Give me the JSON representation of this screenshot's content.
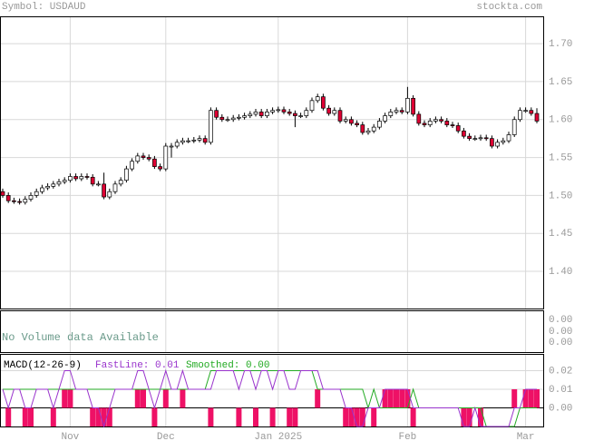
{
  "chart_data": {
    "type": "candlestick",
    "symbol_label": "Symbol: USDAUD",
    "site": "stockta.com",
    "categories": [
      null,
      null,
      null,
      null,
      null,
      null,
      null,
      null,
      null,
      null,
      null,
      null,
      "Nov",
      null,
      null,
      null,
      null,
      null,
      null,
      null,
      null,
      null,
      null,
      null,
      null,
      null,
      null,
      null,
      null,
      "Dec",
      null,
      null,
      null,
      null,
      null,
      null,
      null,
      null,
      null,
      null,
      null,
      null,
      null,
      null,
      null,
      null,
      null,
      null,
      null,
      "Jan 2025",
      null,
      null,
      null,
      null,
      null,
      null,
      null,
      null,
      null,
      null,
      null,
      null,
      null,
      null,
      null,
      null,
      null,
      null,
      null,
      null,
      null,
      null,
      "Feb",
      null,
      null,
      null,
      null,
      null,
      null,
      null,
      null,
      null,
      null,
      null,
      null,
      null,
      null,
      null,
      null,
      null,
      null,
      null,
      null,
      "Mar",
      null,
      null
    ],
    "open": [
      1.505,
      1.5,
      1.493,
      1.492,
      1.491,
      1.495,
      1.5,
      1.505,
      1.51,
      1.512,
      1.515,
      1.518,
      1.52,
      1.525,
      1.522,
      1.525,
      1.524,
      1.515,
      1.515,
      1.498,
      1.505,
      1.515,
      1.52,
      1.535,
      1.545,
      1.552,
      1.55,
      1.548,
      1.538,
      1.535,
      1.565,
      1.565,
      1.57,
      1.572,
      1.572,
      1.573,
      1.575,
      1.57,
      1.612,
      1.603,
      1.6,
      1.6,
      1.602,
      1.603,
      1.605,
      1.607,
      1.61,
      1.605,
      1.61,
      1.612,
      1.613,
      1.61,
      1.608,
      1.605,
      1.605,
      1.612,
      1.625,
      1.63,
      1.615,
      1.608,
      1.612,
      1.598,
      1.6,
      1.595,
      1.593,
      1.583,
      1.585,
      1.59,
      1.598,
      1.605,
      1.61,
      1.612,
      1.61,
      1.628,
      1.607,
      1.595,
      1.593,
      1.598,
      1.6,
      1.598,
      1.593,
      1.592,
      1.585,
      1.578,
      1.575,
      1.575,
      1.576,
      1.575,
      1.565,
      1.57,
      1.572,
      1.58,
      1.6,
      1.612,
      1.612,
      1.608
    ],
    "high": [
      1.509,
      1.504,
      1.497,
      1.496,
      1.499,
      1.504,
      1.509,
      1.514,
      1.516,
      1.519,
      1.522,
      1.524,
      1.529,
      1.529,
      1.529,
      1.529,
      1.528,
      1.519,
      1.53,
      1.509,
      1.519,
      1.524,
      1.539,
      1.549,
      1.556,
      1.556,
      1.554,
      1.552,
      1.542,
      1.569,
      1.569,
      1.574,
      1.576,
      1.576,
      1.577,
      1.579,
      1.579,
      1.616,
      1.616,
      1.607,
      1.604,
      1.606,
      1.607,
      1.609,
      1.611,
      1.614,
      1.614,
      1.614,
      1.616,
      1.617,
      1.617,
      1.614,
      1.612,
      1.609,
      1.616,
      1.629,
      1.634,
      1.634,
      1.619,
      1.616,
      1.616,
      1.604,
      1.604,
      1.599,
      1.597,
      1.589,
      1.594,
      1.602,
      1.609,
      1.614,
      1.616,
      1.616,
      1.643,
      1.632,
      1.611,
      1.599,
      1.602,
      1.604,
      1.604,
      1.602,
      1.597,
      1.596,
      1.589,
      1.582,
      1.579,
      1.58,
      1.58,
      1.579,
      1.574,
      1.576,
      1.584,
      1.604,
      1.616,
      1.616,
      1.616,
      1.615
    ],
    "low": [
      1.497,
      1.49,
      1.489,
      1.488,
      1.488,
      1.492,
      1.497,
      1.502,
      1.507,
      1.509,
      1.512,
      1.515,
      1.517,
      1.519,
      1.519,
      1.521,
      1.512,
      1.512,
      1.495,
      1.495,
      1.502,
      1.512,
      1.517,
      1.532,
      1.542,
      1.547,
      1.545,
      1.535,
      1.532,
      1.532,
      1.55,
      1.562,
      1.567,
      1.569,
      1.569,
      1.57,
      1.567,
      1.567,
      1.6,
      1.597,
      1.597,
      1.597,
      1.599,
      1.6,
      1.602,
      1.604,
      1.602,
      1.602,
      1.607,
      1.609,
      1.607,
      1.605,
      1.59,
      1.602,
      1.602,
      1.609,
      1.622,
      1.612,
      1.605,
      1.605,
      1.595,
      1.595,
      1.592,
      1.59,
      1.58,
      1.58,
      1.582,
      1.587,
      1.595,
      1.602,
      1.607,
      1.607,
      1.607,
      1.604,
      1.592,
      1.59,
      1.59,
      1.595,
      1.595,
      1.59,
      1.589,
      1.582,
      1.575,
      1.572,
      1.572,
      1.572,
      1.572,
      1.562,
      1.562,
      1.567,
      1.569,
      1.577,
      1.597,
      1.609,
      1.605,
      1.595
    ],
    "close": [
      1.5,
      1.493,
      1.492,
      1.491,
      1.495,
      1.5,
      1.505,
      1.51,
      1.512,
      1.515,
      1.518,
      1.52,
      1.525,
      1.522,
      1.525,
      1.524,
      1.515,
      1.515,
      1.498,
      1.505,
      1.515,
      1.52,
      1.535,
      1.545,
      1.552,
      1.55,
      1.548,
      1.538,
      1.535,
      1.565,
      1.565,
      1.57,
      1.572,
      1.572,
      1.573,
      1.575,
      1.57,
      1.612,
      1.603,
      1.6,
      1.6,
      1.602,
      1.603,
      1.605,
      1.607,
      1.61,
      1.605,
      1.61,
      1.612,
      1.613,
      1.61,
      1.608,
      1.605,
      1.605,
      1.612,
      1.625,
      1.63,
      1.615,
      1.608,
      1.612,
      1.598,
      1.6,
      1.595,
      1.593,
      1.583,
      1.585,
      1.59,
      1.598,
      1.605,
      1.61,
      1.612,
      1.61,
      1.628,
      1.607,
      1.595,
      1.593,
      1.598,
      1.6,
      1.598,
      1.593,
      1.592,
      1.585,
      1.578,
      1.575,
      1.575,
      1.576,
      1.575,
      1.565,
      1.57,
      1.572,
      1.58,
      1.6,
      1.612,
      1.612,
      1.608,
      1.598
    ],
    "up_color": "#ffffff",
    "down_color": "#dd0033",
    "ylim": [
      1.351,
      1.736
    ],
    "yticks": [
      {
        "value": 1.4,
        "label": "1.40"
      },
      {
        "value": 1.45,
        "label": "1.45"
      },
      {
        "value": 1.5,
        "label": "1.50"
      },
      {
        "value": 1.55,
        "label": "1.55"
      },
      {
        "value": 1.6,
        "label": "1.60"
      },
      {
        "value": 1.65,
        "label": "1.65"
      },
      {
        "value": 1.7,
        "label": "1.70"
      }
    ],
    "grid": true,
    "volume": {
      "message": "No Volume data Available",
      "tick_labels": [
        "0.00",
        "0.00",
        "0.00"
      ]
    },
    "macd": {
      "title": "MACD(12-26-9)",
      "fast_label": "FastLine: 0.01",
      "smooth_label": "Smoothed: 0.00",
      "fast_color": "#9933cc",
      "smooth_color": "#22aa22",
      "hist_color": "#ee1166",
      "ylim": [
        -0.01,
        0.029
      ],
      "yticks": [
        {
          "value": 0,
          "label": "0.00"
        },
        {
          "value": 0.01,
          "label": "0.01"
        },
        {
          "value": 0.02,
          "label": "0.02"
        }
      ],
      "fast": [
        0.01,
        0,
        0.01,
        0.01,
        0,
        0,
        0.01,
        0.01,
        0.01,
        0,
        0.01,
        0.02,
        0.02,
        0.01,
        0.01,
        0.01,
        0,
        0,
        -0.01,
        0,
        0.01,
        0.01,
        0.01,
        0.01,
        0.02,
        0.02,
        0.01,
        0,
        0.01,
        0.02,
        0.01,
        0.01,
        0.02,
        0.01,
        0.01,
        0.01,
        0.01,
        0.01,
        0.02,
        0.02,
        0.02,
        0.02,
        0.01,
        0.02,
        0.02,
        0.01,
        0.02,
        0.02,
        0.01,
        0.02,
        0.02,
        0.01,
        0.01,
        0.02,
        0.02,
        0.02,
        0.02,
        0.01,
        0.01,
        0.01,
        0.01,
        0,
        0,
        -0.01,
        -0.01,
        0,
        0,
        0,
        0.01,
        0.01,
        0.01,
        0.01,
        0.01,
        0,
        0,
        0,
        0,
        0,
        0,
        0,
        0,
        0,
        -0.01,
        -0.01,
        0,
        -0.01,
        -0.01,
        -0.01,
        -0.01,
        -0.01,
        -0.01,
        0,
        0,
        0.01,
        0.01,
        0.01
      ],
      "smooth": [
        0.01,
        0.01,
        0.01,
        0.01,
        0.01,
        0.01,
        0.01,
        0.01,
        0.01,
        0.01,
        0.01,
        0.01,
        0.01,
        0.01,
        0.01,
        0.01,
        0.01,
        0.01,
        0.01,
        0.01,
        0.01,
        0.01,
        0.01,
        0.01,
        0.01,
        0.01,
        0.01,
        0.01,
        0.01,
        0.01,
        0.01,
        0.01,
        0.01,
        0.01,
        0.01,
        0.01,
        0.01,
        0.02,
        0.02,
        0.02,
        0.02,
        0.02,
        0.02,
        0.02,
        0.02,
        0.02,
        0.02,
        0.02,
        0.02,
        0.02,
        0.02,
        0.02,
        0.02,
        0.02,
        0.02,
        0.02,
        0.01,
        0.01,
        0.01,
        0.01,
        0.01,
        0.01,
        0.01,
        0.01,
        0.01,
        0,
        0.01,
        0,
        0,
        0,
        0,
        0,
        0,
        0.01,
        0,
        0,
        0,
        0,
        0,
        0,
        0,
        0,
        0,
        0,
        0,
        0,
        -0.01,
        -0.01,
        -0.01,
        -0.01,
        -0.01,
        -0.01,
        0,
        0,
        0,
        0
      ],
      "hist": [
        0,
        -0.01,
        0,
        0,
        -0.01,
        -0.01,
        0,
        0,
        0,
        -0.01,
        0,
        0.01,
        0.01,
        0,
        0,
        0,
        -0.01,
        -0.01,
        -0.01,
        -0.01,
        0,
        0,
        0,
        0,
        0.01,
        0.01,
        0,
        -0.01,
        0,
        0.01,
        0,
        0,
        0.01,
        0,
        0,
        0,
        0,
        -0.01,
        0,
        0,
        0,
        0,
        -0.01,
        0,
        0,
        -0.01,
        0,
        0,
        -0.01,
        0,
        0,
        -0.01,
        -0.01,
        0,
        0,
        0,
        0.01,
        0,
        0,
        0,
        0,
        -0.01,
        -0.01,
        -0.01,
        -0.01,
        0,
        -0.01,
        0,
        0.01,
        0.01,
        0.01,
        0.01,
        0.01,
        -0.01,
        0,
        0,
        0,
        0,
        0,
        0,
        0,
        0,
        -0.01,
        -0.01,
        0,
        -0.01,
        0,
        0,
        0,
        0,
        0,
        0.01,
        0,
        0.01,
        0.01,
        0.01
      ]
    }
  }
}
